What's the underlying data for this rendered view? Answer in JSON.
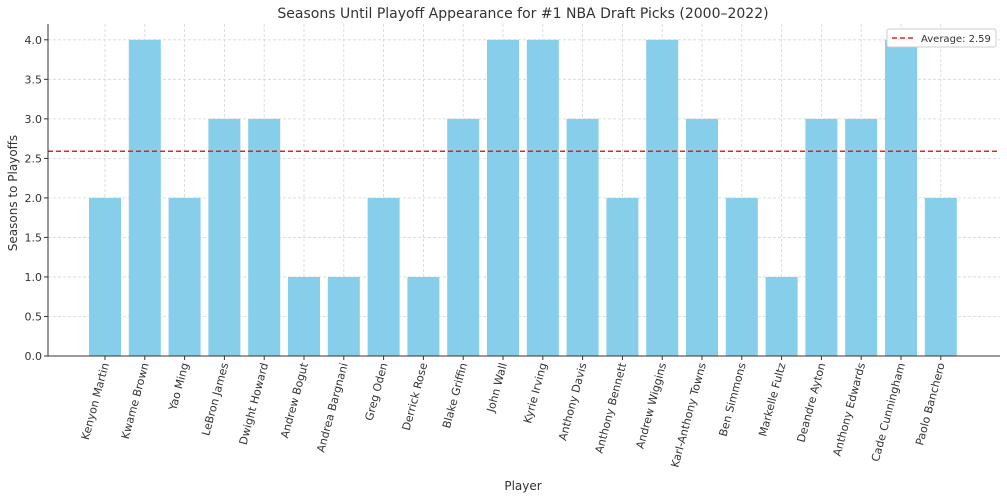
{
  "chart_data": {
    "type": "bar",
    "title": "Seasons Until Playoff Appearance for #1 NBA Draft Picks (2000–2022)",
    "xlabel": "Player",
    "ylabel": "Seasons to Playoffs",
    "categories": [
      "Kenyon Martin",
      "Kwame Brown",
      "Yao Ming",
      "LeBron James",
      "Dwight Howard",
      "Andrew Bogut",
      "Andrea Bargnani",
      "Greg Oden",
      "Derrick Rose",
      "Blake Griffin",
      "John Wall",
      "Kyrie Irving",
      "Anthony Davis",
      "Anthony Bennett",
      "Andrew Wiggins",
      "Karl-Anthony Towns",
      "Ben Simmons",
      "Markelle Fultz",
      "Deandre Ayton",
      "Anthony Edwards",
      "Cade Cunningham",
      "Paolo Banchero"
    ],
    "values": [
      2,
      4,
      2,
      3,
      3,
      1,
      1,
      2,
      1,
      3,
      4,
      4,
      3,
      2,
      4,
      3,
      2,
      1,
      3,
      3,
      4,
      2
    ],
    "ylim": [
      0,
      4.2
    ],
    "yticks": [
      "0.0",
      "0.5",
      "1.0",
      "1.5",
      "2.0",
      "2.5",
      "3.0",
      "3.5",
      "4.0"
    ],
    "average": 2.59,
    "average_label": "Average: 2.59",
    "grid": true,
    "legend_position": "top-right",
    "bar_color": "#87CEEB",
    "average_color": "#e0261c"
  }
}
